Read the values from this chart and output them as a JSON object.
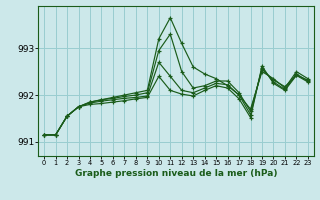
{
  "xlabel": "Graphe pression niveau de la mer (hPa)",
  "background_color": "#cce8ea",
  "grid_color": "#99cdd0",
  "line_color": "#1a5c1a",
  "ylim": [
    990.7,
    993.9
  ],
  "yticks": [
    991,
    992,
    993
  ],
  "xlim": [
    -0.5,
    23.5
  ],
  "series": [
    [
      991.15,
      991.15,
      991.55,
      991.75,
      991.85,
      991.9,
      991.95,
      992.0,
      992.05,
      992.1,
      993.2,
      993.65,
      993.1,
      992.6,
      992.45,
      992.35,
      992.2,
      992.0,
      991.7,
      992.5,
      992.35,
      992.15,
      992.5,
      992.35
    ],
    [
      991.15,
      991.15,
      991.55,
      991.75,
      991.85,
      991.9,
      991.93,
      991.97,
      992.0,
      992.05,
      992.95,
      993.3,
      992.5,
      992.15,
      992.2,
      992.3,
      992.3,
      992.05,
      991.65,
      992.55,
      992.32,
      992.18,
      992.42,
      992.32
    ],
    [
      991.15,
      991.15,
      991.55,
      991.75,
      991.83,
      991.87,
      991.9,
      991.93,
      991.95,
      991.98,
      992.7,
      992.4,
      992.1,
      992.05,
      992.15,
      992.25,
      992.22,
      992.0,
      991.58,
      992.58,
      992.28,
      992.12,
      992.45,
      992.3
    ],
    [
      991.15,
      991.15,
      991.55,
      991.75,
      991.8,
      991.82,
      991.85,
      991.88,
      991.92,
      991.95,
      992.4,
      992.1,
      992.02,
      991.98,
      992.1,
      992.2,
      992.15,
      991.92,
      991.52,
      992.62,
      992.25,
      992.1,
      992.42,
      992.28
    ]
  ]
}
